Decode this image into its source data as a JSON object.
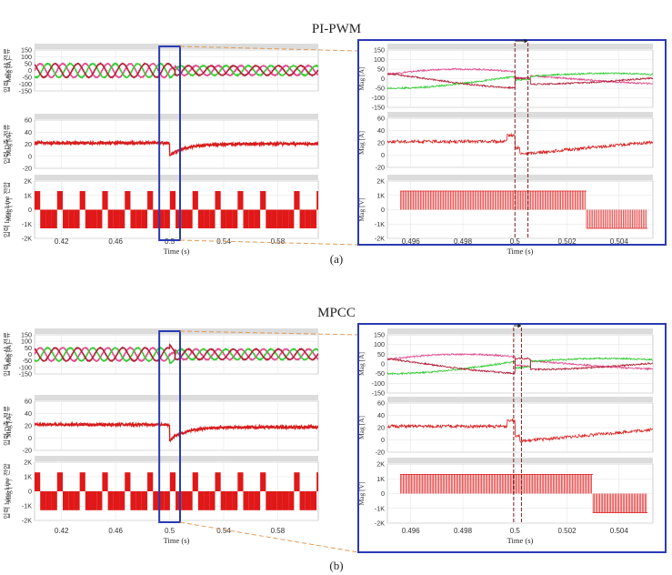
{
  "titles": {
    "top": "PI-PWM",
    "bottom": "MPCC"
  },
  "captions": {
    "a": "(a)",
    "b": "(b)"
  },
  "colors": {
    "phase_a": "#e14a8c",
    "phase_b": "#33cc33",
    "phase_c": "#b3213a",
    "d_axis": "#d81b1b",
    "line_voltage": "#e01818",
    "zoom_box": "#2a3bb3",
    "connector": "#e39a55",
    "event_line": "#7a1f1f"
  },
  "chart_data": [
    {
      "type": "line",
      "figure": "a",
      "view": "full",
      "x_ticks": [
        "0.42",
        "0.46",
        "0.5",
        "0.54",
        "0.58"
      ],
      "x_range": [
        0.4,
        0.61
      ],
      "xlabel": "Time (s)",
      "zoom_window": [
        0.495,
        0.505
      ],
      "step_time": 0.5,
      "panels": [
        {
          "ylabel": "입력 abc상 전류",
          "unit": "Mag [A]",
          "y_ticks": [
            "150",
            "100",
            "50",
            "0",
            "-50",
            "-100",
            "-150"
          ],
          "y_range": [
            -150,
            150
          ],
          "series": [
            {
              "amplitude": 50,
              "phase_deg": 0
            },
            {
              "amplitude": 50,
              "phase_deg": -120
            },
            {
              "amplitude": 50,
              "phase_deg": 120
            }
          ]
        },
        {
          "ylabel": "입력 D축 전류",
          "unit": "Mag [A]",
          "y_ticks": [
            "60",
            "40",
            "20",
            "0",
            "-20"
          ],
          "y_range": [
            -30,
            65
          ],
          "series": [
            {
              "before": 20,
              "after": 18,
              "dip": -5
            }
          ]
        },
        {
          "ylabel": "입력 Line-Line 전압",
          "unit": "Mag [V]",
          "y_ticks": [
            "2K",
            "1K",
            "0",
            "-1K",
            "-2K"
          ],
          "y_range": [
            -2000,
            2000
          ],
          "series": [
            {
              "level": 1300
            }
          ]
        }
      ]
    },
    {
      "type": "line",
      "figure": "a",
      "view": "zoom",
      "x_ticks": [
        "0.496",
        "0.498",
        "0.5",
        "0.502",
        "0.504"
      ],
      "x_range": [
        0.4951,
        0.5053
      ],
      "xlabel": "Time (s)",
      "event_lines": [
        0.5,
        0.5005
      ],
      "panels": [
        {
          "unit": "Mag [A]",
          "y_ticks": [
            "150",
            "100",
            "50",
            "0",
            "-50",
            "-100",
            "-150"
          ],
          "y_range": [
            -150,
            150
          ]
        },
        {
          "unit": "Mag [A]",
          "y_ticks": [
            "60",
            "40",
            "20",
            "0",
            "-20"
          ],
          "y_range": [
            -30,
            65
          ]
        },
        {
          "unit": "Mag [V]",
          "y_ticks": [
            "2K",
            "1K",
            "0",
            "-1K",
            "-2K"
          ],
          "y_range": [
            -2000,
            2000
          ]
        }
      ]
    },
    {
      "type": "line",
      "figure": "b",
      "view": "full",
      "x_ticks": [
        "0.42",
        "0.46",
        "0.5",
        "0.54",
        "0.58"
      ],
      "x_range": [
        0.4,
        0.61
      ],
      "xlabel": "Time (s)",
      "zoom_window": [
        0.495,
        0.505
      ],
      "step_time": 0.5,
      "panels": [
        {
          "ylabel": "입력 abc상 전류",
          "unit": "Mag [A]",
          "y_ticks": [
            "150",
            "100",
            "50",
            "0",
            "-50",
            "-100",
            "-150"
          ],
          "y_range": [
            -150,
            150
          ]
        },
        {
          "ylabel": "입력 D축 전류",
          "unit": "Mag [A]",
          "y_ticks": [
            "60",
            "40",
            "20",
            "0",
            "-20"
          ],
          "y_range": [
            -30,
            65
          ],
          "series": [
            {
              "before": 20,
              "after": 15,
              "dip": -10
            }
          ]
        },
        {
          "ylabel": "입력 Line-Line 전압",
          "unit": "Mag [V]",
          "y_ticks": [
            "2K",
            "1K",
            "0",
            "-1K",
            "-2K"
          ],
          "y_range": [
            -2000,
            2000
          ]
        }
      ]
    },
    {
      "type": "line",
      "figure": "b",
      "view": "zoom",
      "x_ticks": [
        "0.496",
        "0.498",
        "0.5",
        "0.502",
        "0.504"
      ],
      "x_range": [
        0.4951,
        0.5053
      ],
      "xlabel": "Time (s)",
      "event_lines": [
        0.49995,
        0.50025
      ],
      "panels": [
        {
          "unit": "Mag [A]",
          "y_ticks": [
            "150",
            "100",
            "50",
            "0",
            "-50",
            "-100",
            "-150"
          ],
          "y_range": [
            -150,
            150
          ]
        },
        {
          "unit": "Mag [A]",
          "y_ticks": [
            "60",
            "40",
            "20",
            "0",
            "-20"
          ],
          "y_range": [
            -30,
            65
          ]
        },
        {
          "unit": "Mag [V]",
          "y_ticks": [
            "2K",
            "1K",
            "0",
            "-1K",
            "-2K"
          ],
          "y_range": [
            -2000,
            2000
          ]
        }
      ]
    }
  ]
}
